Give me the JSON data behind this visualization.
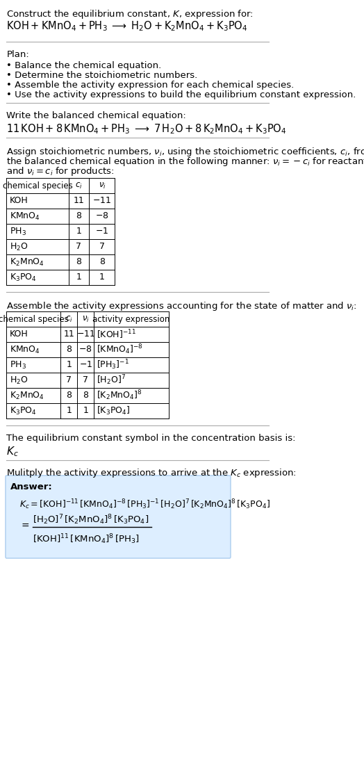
{
  "bg_color": "#ffffff",
  "text_color": "#000000",
  "title_line1": "Construct the equilibrium constant, $K$, expression for:",
  "title_line2": "$\\mathrm{KOH + KMnO_4 + PH_3 \\;\\longrightarrow\\; H_2O + K_2MnO_4 + K_3PO_4}$",
  "plan_header": "Plan:",
  "plan_items": [
    "\\bullet\\ Balance the chemical equation.",
    "\\bullet\\ Determine the stoichiometric numbers.",
    "\\bullet\\ Assemble the activity expression for each chemical species.",
    "\\bullet\\ Use the activity expressions to build the equilibrium constant expression."
  ],
  "balanced_header": "Write the balanced chemical equation:",
  "balanced_eq": "$\\mathrm{11\\,KOH + 8\\,KMnO_4 + PH_3 \\;\\longrightarrow\\; 7\\,H_2O + 8\\,K_2MnO_4 + K_3PO_4}$",
  "stoich_header": "Assign stoichiometric numbers, $\\nu_i$, using the stoichiometric coefficients, $c_i$, from\nthe balanced chemical equation in the following manner: $\\nu_i = -c_i$ for reactants\nand $\\nu_i = c_i$ for products:",
  "table1_headers": [
    "chemical species",
    "$c_i$",
    "$\\nu_i$"
  ],
  "table1_rows": [
    [
      "KOH",
      "11",
      "$-11$"
    ],
    [
      "$\\mathrm{KMnO_4}$",
      "8",
      "$-8$"
    ],
    [
      "$\\mathrm{PH_3}$",
      "1",
      "$-1$"
    ],
    [
      "$\\mathrm{H_2O}$",
      "7",
      "7"
    ],
    [
      "$\\mathrm{K_2MnO_4}$",
      "8",
      "8"
    ],
    [
      "$\\mathrm{K_3PO_4}$",
      "1",
      "1"
    ]
  ],
  "activity_header": "Assemble the activity expressions accounting for the state of matter and $\\nu_i$:",
  "table2_headers": [
    "chemical species",
    "$c_i$",
    "$\\nu_i$",
    "activity expression"
  ],
  "table2_rows": [
    [
      "KOH",
      "11",
      "$-11$",
      "$[\\mathrm{KOH}]^{-11}$"
    ],
    [
      "$\\mathrm{KMnO_4}$",
      "8",
      "$-8$",
      "$[\\mathrm{KMnO_4}]^{-8}$"
    ],
    [
      "$\\mathrm{PH_3}$",
      "1",
      "$-1$",
      "$[\\mathrm{PH_3}]^{-1}$"
    ],
    [
      "$\\mathrm{H_2O}$",
      "7",
      "7",
      "$[\\mathrm{H_2O}]^{7}$"
    ],
    [
      "$\\mathrm{K_2MnO_4}$",
      "8",
      "8",
      "$[\\mathrm{K_2MnO_4}]^{8}$"
    ],
    [
      "$\\mathrm{K_3PO_4}$",
      "1",
      "1",
      "$[\\mathrm{K_3PO_4}]$"
    ]
  ],
  "kc_header": "The equilibrium constant symbol in the concentration basis is:",
  "kc_symbol": "$K_c$",
  "multiply_header": "Mulitply the activity expressions to arrive at the $K_c$ expression:",
  "answer_label": "Answer:",
  "answer_line1": "$K_c = [\\mathrm{KOH}]^{-11}\\,[\\mathrm{KMnO_4}]^{-8}\\,[\\mathrm{PH_3}]^{-1}\\,[\\mathrm{H_2O}]^{7}\\,[\\mathrm{K_2MnO_4}]^{8}\\,[\\mathrm{K_3PO_4}]$",
  "answer_eq_lhs": "$= \\dfrac{[\\mathrm{H_2O}]^{7}\\,[\\mathrm{K_2MnO_4}]^{8}\\,[\\mathrm{K_3PO_4}]}{[\\mathrm{KOH}]^{11}\\,[\\mathrm{KMnO_4}]^{8}\\,[\\mathrm{PH_3}]}$",
  "answer_box_color": "#ddeeff",
  "answer_box_border": "#aaccee"
}
